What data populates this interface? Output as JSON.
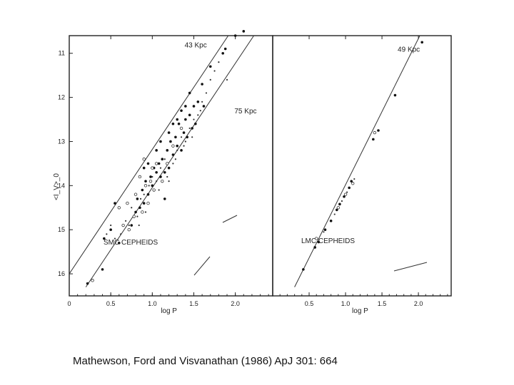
{
  "caption": "Mathewson, Ford and Visvanathan (1986) ApJ 301: 664",
  "chart_data": [
    {
      "type": "scatter",
      "panel": "left",
      "ylabel": "<I_V>_0",
      "xlabel": "log P",
      "xlim": [
        0,
        2.45
      ],
      "ylim": [
        10.6,
        16.5
      ],
      "y_inverted": true,
      "xticks": [
        0,
        0.5,
        1.0,
        1.5,
        2.0
      ],
      "xtick_labels": [
        "0",
        "0.5",
        "1.0",
        "1.5",
        "2.0"
      ],
      "yticks": [
        11,
        12,
        13,
        14,
        15,
        16
      ],
      "ytick_labels": [
        "11",
        "12",
        "13",
        "14",
        "15",
        "16"
      ],
      "annotation": "SMC CEPHEIDS",
      "lines": [
        {
          "label": "75 Kpc",
          "x": [
            0.2,
            2.4
          ],
          "y": [
            16.3,
            10.1
          ],
          "label_at": [
            1.8,
            12.3
          ]
        },
        {
          "label": "43 Kpc",
          "x": [
            0,
            1.95
          ],
          "y": [
            16.0,
            10.5
          ],
          "label_at": [
            1.2,
            10.8
          ]
        }
      ],
      "points_filled": [
        [
          0.22,
          16.22
        ],
        [
          0.4,
          15.9
        ],
        [
          0.42,
          15.2
        ],
        [
          0.5,
          15.0
        ],
        [
          0.55,
          14.4
        ],
        [
          0.6,
          15.3
        ],
        [
          0.75,
          14.9
        ],
        [
          0.8,
          14.6
        ],
        [
          0.82,
          14.3
        ],
        [
          0.85,
          14.5
        ],
        [
          0.88,
          14.1
        ],
        [
          0.9,
          14.4
        ],
        [
          0.92,
          13.9
        ],
        [
          0.95,
          14.2
        ],
        [
          0.98,
          13.8
        ],
        [
          1.0,
          14.0
        ],
        [
          1.02,
          13.6
        ],
        [
          1.05,
          13.7
        ],
        [
          1.08,
          13.5
        ],
        [
          1.1,
          13.8
        ],
        [
          1.12,
          13.4
        ],
        [
          1.15,
          13.7
        ],
        [
          1.18,
          13.2
        ],
        [
          1.2,
          13.6
        ],
        [
          1.22,
          13.0
        ],
        [
          1.25,
          13.3
        ],
        [
          1.28,
          12.9
        ],
        [
          1.3,
          13.1
        ],
        [
          1.32,
          12.6
        ],
        [
          1.35,
          13.2
        ],
        [
          1.38,
          12.8
        ],
        [
          1.4,
          12.5
        ],
        [
          1.42,
          12.9
        ],
        [
          1.45,
          12.4
        ],
        [
          1.48,
          12.7
        ],
        [
          1.5,
          12.2
        ],
        [
          1.52,
          12.6
        ],
        [
          1.55,
          12.1
        ],
        [
          1.6,
          11.7
        ],
        [
          1.62,
          12.2
        ],
        [
          1.15,
          14.3
        ],
        [
          1.05,
          13.2
        ],
        [
          1.25,
          12.6
        ],
        [
          1.35,
          12.3
        ],
        [
          1.45,
          11.9
        ],
        [
          1.7,
          11.3
        ],
        [
          1.85,
          11.0
        ],
        [
          1.88,
          10.9
        ],
        [
          2.1,
          10.5
        ],
        [
          2.0,
          10.6
        ],
        [
          0.95,
          13.5
        ],
        [
          1.1,
          13.0
        ],
        [
          1.2,
          12.8
        ],
        [
          1.3,
          12.5
        ],
        [
          1.4,
          12.2
        ],
        [
          0.9,
          13.6
        ]
      ],
      "points_open": [
        [
          0.28,
          16.15
        ],
        [
          0.65,
          14.9
        ],
        [
          0.72,
          15.0
        ],
        [
          0.78,
          14.7
        ],
        [
          0.8,
          14.2
        ],
        [
          0.85,
          13.8
        ],
        [
          0.88,
          14.6
        ],
        [
          0.92,
          14.0
        ],
        [
          0.95,
          14.4
        ],
        [
          0.98,
          13.9
        ],
        [
          1.0,
          13.6
        ],
        [
          1.02,
          14.1
        ],
        [
          1.05,
          13.5
        ],
        [
          1.12,
          13.9
        ],
        [
          1.18,
          13.5
        ],
        [
          0.7,
          14.4
        ],
        [
          0.6,
          14.5
        ],
        [
          0.9,
          13.4
        ],
        [
          1.25,
          13.1
        ],
        [
          1.35,
          12.7
        ]
      ],
      "points_small": [
        [
          0.45,
          15.1
        ],
        [
          0.5,
          14.9
        ],
        [
          0.62,
          15.1
        ],
        [
          0.68,
          14.8
        ],
        [
          0.75,
          14.5
        ],
        [
          0.82,
          14.7
        ],
        [
          0.86,
          14.3
        ],
        [
          0.9,
          14.2
        ],
        [
          0.96,
          14.0
        ],
        [
          1.0,
          13.8
        ],
        [
          1.05,
          13.9
        ],
        [
          1.1,
          13.6
        ],
        [
          1.15,
          13.4
        ],
        [
          1.2,
          13.9
        ],
        [
          1.25,
          13.5
        ],
        [
          1.3,
          13.2
        ],
        [
          1.35,
          12.9
        ],
        [
          1.4,
          13.0
        ],
        [
          1.45,
          12.7
        ],
        [
          1.5,
          12.5
        ],
        [
          1.55,
          12.4
        ],
        [
          1.6,
          12.1
        ],
        [
          1.65,
          11.9
        ],
        [
          1.7,
          11.6
        ],
        [
          1.75,
          11.4
        ],
        [
          1.8,
          11.2
        ],
        [
          1.9,
          11.6
        ],
        [
          0.55,
          15.2
        ],
        [
          0.72,
          14.9
        ],
        [
          0.84,
          14.9
        ],
        [
          0.92,
          14.6
        ],
        [
          1.08,
          14.1
        ],
        [
          1.18,
          13.8
        ],
        [
          1.28,
          13.4
        ],
        [
          1.38,
          13.1
        ],
        [
          1.48,
          12.9
        ],
        [
          1.58,
          12.3
        ]
      ]
    },
    {
      "type": "scatter",
      "panel": "right",
      "xlabel": "log P",
      "xlim": [
        0,
        2.45
      ],
      "ylim": [
        10.6,
        16.5
      ],
      "y_inverted": true,
      "xticks": [
        0.5,
        1.0,
        1.5,
        2.0
      ],
      "xtick_labels": [
        "0.5",
        "1.0",
        "1.5",
        "2.0"
      ],
      "annotation": "LMC CEPHEIDS",
      "lines": [
        {
          "label": "49 Kpc",
          "x": [
            0.3,
            2.05
          ],
          "y": [
            16.3,
            10.5
          ],
          "label_at": [
            1.5,
            10.9
          ]
        }
      ],
      "points_filled": [
        [
          0.42,
          15.9
        ],
        [
          0.58,
          15.4
        ],
        [
          0.63,
          15.28
        ],
        [
          0.72,
          15.0
        ],
        [
          0.8,
          14.8
        ],
        [
          0.88,
          14.55
        ],
        [
          0.92,
          14.42
        ],
        [
          0.98,
          14.25
        ],
        [
          1.05,
          14.05
        ],
        [
          1.08,
          13.9
        ],
        [
          1.38,
          12.95
        ],
        [
          1.45,
          12.75
        ],
        [
          1.68,
          11.95
        ],
        [
          2.05,
          10.75
        ]
      ],
      "points_open": [
        [
          0.6,
          15.2
        ],
        [
          0.9,
          14.5
        ],
        [
          1.0,
          14.2
        ],
        [
          1.1,
          13.95
        ],
        [
          1.4,
          12.8
        ]
      ],
      "points_small": [
        [
          0.7,
          15.05
        ],
        [
          0.85,
          14.65
        ],
        [
          0.95,
          14.35
        ],
        [
          1.02,
          14.15
        ],
        [
          1.12,
          13.85
        ]
      ]
    }
  ]
}
